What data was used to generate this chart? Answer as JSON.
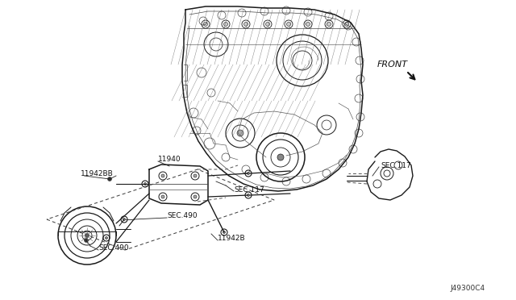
{
  "bg_color": "#ffffff",
  "line_color": "#1a1a1a",
  "diagram_id": "J49300C4",
  "figsize": [
    6.4,
    3.72
  ],
  "dpi": 100,
  "xlim": [
    0,
    640
  ],
  "ylim": [
    0,
    372
  ]
}
